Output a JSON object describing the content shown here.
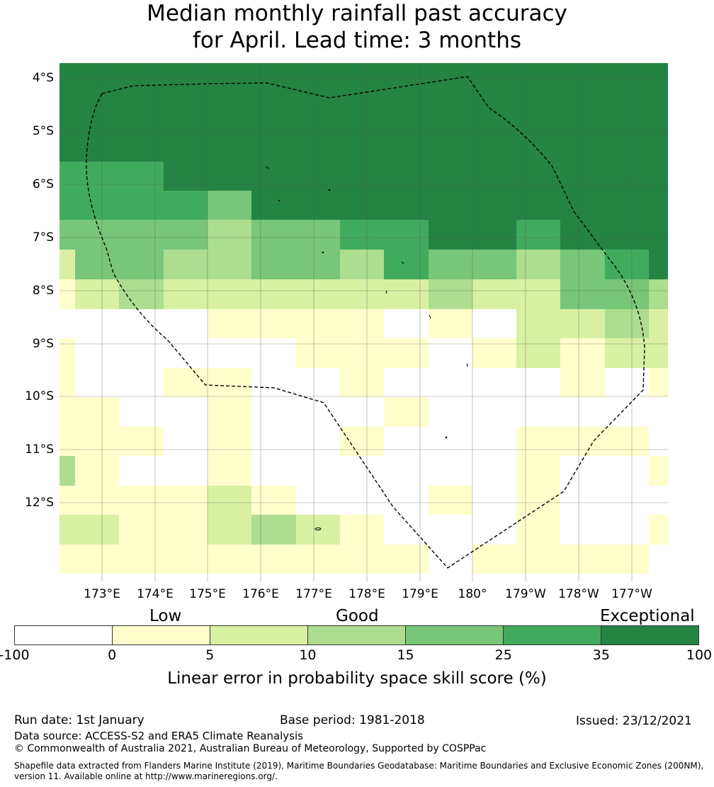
{
  "title": {
    "line1": "Median monthly rainfall past accuracy",
    "line2": "for April. Lead time: 3 months"
  },
  "map": {
    "lat_labels": [
      "4°S",
      "5°S",
      "6°S",
      "7°S",
      "8°S",
      "9°S",
      "10°S",
      "11°S",
      "12°S"
    ],
    "lon_labels": [
      "173°E",
      "174°E",
      "175°E",
      "176°E",
      "177°E",
      "178°E",
      "179°E",
      "180°",
      "179°W",
      "178°W",
      "177°W"
    ],
    "grid_values": [
      [
        6,
        6,
        6,
        6,
        6,
        6,
        6,
        6,
        6,
        6,
        6,
        6,
        6,
        6
      ],
      [
        6,
        6,
        6,
        6,
        6,
        6,
        6,
        6,
        6,
        6,
        6,
        6,
        6,
        6
      ],
      [
        6,
        6,
        6,
        6,
        6,
        6,
        6,
        6,
        6,
        6,
        6,
        6,
        6,
        6
      ],
      [
        6,
        6,
        6,
        6,
        6,
        6,
        6,
        6,
        6,
        6,
        6,
        6,
        6,
        6
      ],
      [
        5,
        5,
        6,
        6,
        6,
        6,
        6,
        6,
        6,
        6,
        6,
        6,
        6,
        6
      ],
      [
        5,
        5,
        5,
        4,
        6,
        6,
        6,
        6,
        6,
        6,
        6,
        6,
        6,
        6
      ],
      [
        4,
        4,
        4,
        3,
        4,
        4,
        5,
        5,
        6,
        6,
        5,
        6,
        6,
        6
      ],
      [
        2,
        4,
        4,
        3,
        3,
        4,
        4,
        3,
        5,
        4,
        4,
        3,
        4,
        5,
        6
      ],
      [
        1,
        2,
        3,
        2,
        2,
        2,
        2,
        2,
        2,
        3,
        2,
        2,
        4,
        4,
        3
      ],
      [
        0,
        0,
        0,
        0,
        1,
        1,
        1,
        1,
        0,
        1,
        0,
        2,
        2,
        3,
        2
      ],
      [
        1,
        0,
        0,
        0,
        0,
        0,
        1,
        1,
        1,
        0,
        1,
        2,
        1,
        2,
        2
      ],
      [
        1,
        0,
        0,
        1,
        1,
        0,
        0,
        1,
        0,
        0,
        0,
        0,
        1,
        0,
        1
      ],
      [
        1,
        1,
        0,
        0,
        1,
        0,
        0,
        0,
        1,
        0,
        0,
        0,
        0,
        0,
        0
      ],
      [
        1,
        1,
        1,
        0,
        1,
        0,
        0,
        1,
        0,
        0,
        0,
        1,
        1,
        1,
        0
      ],
      [
        3,
        1,
        0,
        0,
        1,
        0,
        0,
        0,
        0,
        0,
        0,
        1,
        0,
        0,
        1
      ],
      [
        1,
        1,
        1,
        1,
        2,
        1,
        0,
        0,
        0,
        1,
        0,
        1,
        0,
        0,
        0
      ],
      [
        2,
        2,
        1,
        1,
        2,
        3,
        2,
        1,
        0,
        0,
        0,
        1,
        0,
        0,
        1
      ],
      [
        1,
        1,
        1,
        1,
        1,
        1,
        1,
        1,
        1,
        0,
        1,
        1,
        1,
        1,
        0
      ]
    ]
  },
  "legend": {
    "categories": [
      "Low",
      "Good",
      "Exceptional"
    ],
    "ticks": [
      "-100",
      "0",
      "5",
      "10",
      "15",
      "25",
      "35",
      "100"
    ],
    "colors": [
      "#ffffff",
      "#ffffcc",
      "#d9f0a3",
      "#addd8e",
      "#78c679",
      "#41ab5d",
      "#238443"
    ],
    "title": "Linear error in probability space skill score (%)"
  },
  "footer": {
    "run_date": "Run date: 1st January",
    "base_period": "Base period: 1981-2018",
    "issued": "Issued: 23/12/2021",
    "data_source": "Data source: ACCESS-S2 and ERA5 Climate Reanalysis",
    "copyright": "© Commonwealth of Australia 2021, Australian Bureau of Meteorology, Supported by COSPPac",
    "shapefile": "Shapefile data extracted from Flanders Marine Institute (2019), Maritime Boundaries Geodatabase: Maritime Boundaries and Exclusive Economic Zones (200NM), version 11. Available online at http://www.marineregions.org/."
  }
}
